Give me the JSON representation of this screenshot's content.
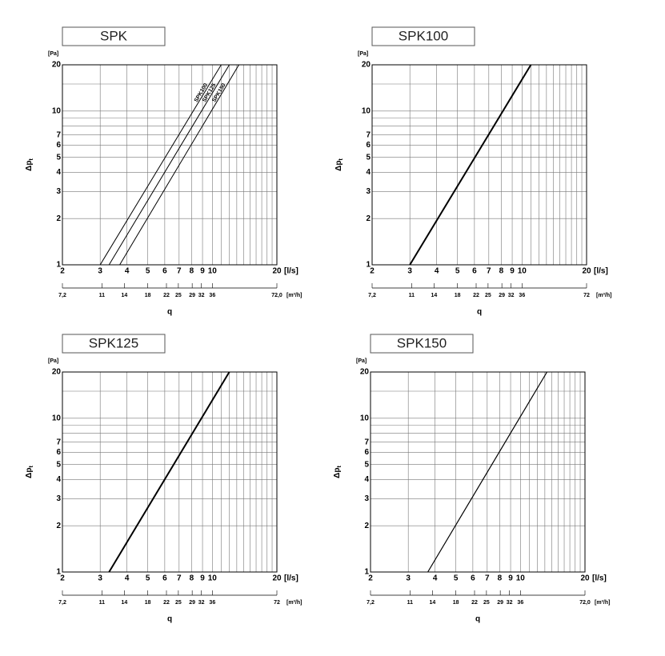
{
  "chart_data": [
    {
      "type": "line",
      "title": "SPK",
      "y_unit": "[Pa]",
      "ylabel": "Δp",
      "ylabel_sub": "t",
      "x_unit": "[l/s]",
      "xlabel": "q",
      "x2_unit": "[m³/h]",
      "log_x": true,
      "log_y": true,
      "grid": true,
      "xlim": [
        2,
        20
      ],
      "xticks": [
        2,
        3,
        4,
        5,
        6,
        7,
        8,
        9,
        10,
        20
      ],
      "xminor": [
        11,
        12,
        13,
        14,
        15,
        16,
        17,
        18,
        19
      ],
      "ylim": [
        1,
        20
      ],
      "yticks": [
        1,
        2,
        3,
        4,
        5,
        6,
        7,
        10,
        20
      ],
      "yminor": [
        8,
        9,
        15
      ],
      "x2lim": [
        7.2,
        72
      ],
      "x2ticks": [
        {
          "value": 7.2,
          "label": "7,2"
        },
        11,
        14,
        18,
        22,
        25,
        29,
        32,
        36,
        {
          "value": 72,
          "label": "72,0"
        }
      ],
      "series": [
        {
          "name": "SPK100",
          "color": "#000000",
          "x": [
            3,
            11
          ],
          "values": [
            1,
            20
          ]
        },
        {
          "name": "SPK125",
          "color": "#000000",
          "x": [
            3.3,
            12
          ],
          "values": [
            1,
            20
          ]
        },
        {
          "name": "SPK150",
          "color": "#000000",
          "x": [
            3.7,
            13.3
          ],
          "values": [
            1,
            20
          ]
        }
      ]
    },
    {
      "type": "line",
      "title": "SPK100",
      "y_unit": "[Pa]",
      "ylabel": "Δp",
      "ylabel_sub": "t",
      "x_unit": "[l/s]",
      "xlabel": "q",
      "x2_unit": "[m³/h]",
      "log_x": true,
      "log_y": true,
      "grid": true,
      "xlim": [
        2,
        20
      ],
      "xticks": [
        2,
        3,
        4,
        5,
        6,
        7,
        8,
        9,
        10,
        20
      ],
      "xminor": [
        11,
        12,
        13,
        14,
        15,
        16,
        17,
        18,
        19
      ],
      "ylim": [
        1,
        20
      ],
      "yticks": [
        1,
        2,
        3,
        4,
        5,
        6,
        7,
        10,
        20
      ],
      "yminor": [
        8,
        9,
        15
      ],
      "x2lim": [
        7.2,
        72
      ],
      "x2ticks": [
        {
          "value": 7.2,
          "label": "7,2"
        },
        11,
        14,
        18,
        22,
        25,
        29,
        32,
        36,
        72
      ],
      "color": "#000000",
      "x": [
        3,
        11
      ],
      "values": [
        1,
        20
      ]
    },
    {
      "type": "line",
      "title": "SPK125",
      "y_unit": "[Pa]",
      "ylabel": "Δp",
      "ylabel_sub": "t",
      "x_unit": "[l/s]",
      "xlabel": "q",
      "x2_unit": "[m³/h]",
      "log_x": true,
      "log_y": true,
      "grid": true,
      "xlim": [
        2,
        20
      ],
      "xticks": [
        2,
        3,
        4,
        5,
        6,
        7,
        8,
        9,
        10,
        20
      ],
      "xminor": [
        11,
        12,
        13,
        14,
        15,
        16,
        17,
        18,
        19
      ],
      "ylim": [
        1,
        20
      ],
      "yticks": [
        1,
        2,
        3,
        4,
        5,
        6,
        7,
        10,
        20
      ],
      "yminor": [
        8,
        9,
        15
      ],
      "x2lim": [
        7.2,
        72
      ],
      "x2ticks": [
        {
          "value": 7.2,
          "label": "7,2"
        },
        11,
        14,
        18,
        22,
        25,
        29,
        32,
        36,
        72
      ],
      "color": "#000000",
      "x": [
        3.3,
        12
      ],
      "values": [
        1,
        20
      ]
    },
    {
      "type": "line",
      "title": "SPK150",
      "y_unit": "[Pa]",
      "ylabel": "Δp",
      "ylabel_sub": "t",
      "x_unit": "[l/s]",
      "xlabel": "q",
      "x2_unit": "[m³/h]",
      "log_x": true,
      "log_y": true,
      "grid": true,
      "xlim": [
        2,
        20
      ],
      "xticks": [
        2,
        3,
        4,
        5,
        6,
        7,
        8,
        9,
        10,
        20
      ],
      "xminor": [
        11,
        12,
        13,
        14,
        15,
        16,
        17,
        18,
        19
      ],
      "ylim": [
        1,
        20
      ],
      "yticks": [
        1,
        2,
        3,
        4,
        5,
        6,
        7,
        10,
        20
      ],
      "yminor": [
        8,
        9,
        15
      ],
      "x2lim": [
        7.2,
        72
      ],
      "x2ticks": [
        {
          "value": 7.2,
          "label": "7,2"
        },
        11,
        14,
        18,
        22,
        25,
        29,
        32,
        36,
        {
          "value": 72,
          "label": "72,0"
        }
      ],
      "color": "#000000",
      "x": [
        3.7,
        13.3
      ],
      "values": [
        1,
        20
      ]
    }
  ]
}
